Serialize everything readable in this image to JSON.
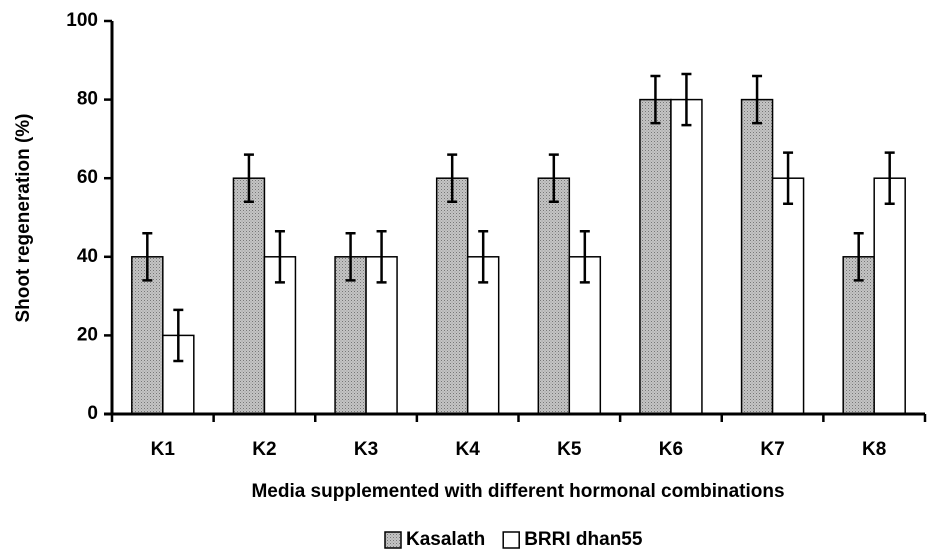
{
  "chart_data": {
    "type": "bar",
    "ylabel": "Shoot regeneration (%)",
    "xlabel": "Media supplemented with different hormonal combinations",
    "categories": [
      "K1",
      "K2",
      "K3",
      "K4",
      "K5",
      "K6",
      "K7",
      "K8"
    ],
    "series": [
      {
        "name": "Kasalath",
        "color": "#c4c4c4",
        "pattern": "dotted",
        "values": [
          40,
          60,
          40,
          60,
          60,
          80,
          80,
          40
        ],
        "errors": [
          6,
          6,
          6,
          6,
          6,
          6,
          6,
          6
        ]
      },
      {
        "name": "BRRI dhan55",
        "color": "#ffffff",
        "values": [
          20,
          40,
          40,
          40,
          40,
          80,
          60,
          60
        ],
        "errors": [
          6.5,
          6.5,
          6.5,
          6.5,
          6.5,
          6.5,
          6.5,
          6.5
        ]
      }
    ],
    "ylim": [
      0,
      100
    ],
    "yticks": [
      0,
      20,
      40,
      60,
      80,
      100
    ],
    "legend": "bottom"
  }
}
